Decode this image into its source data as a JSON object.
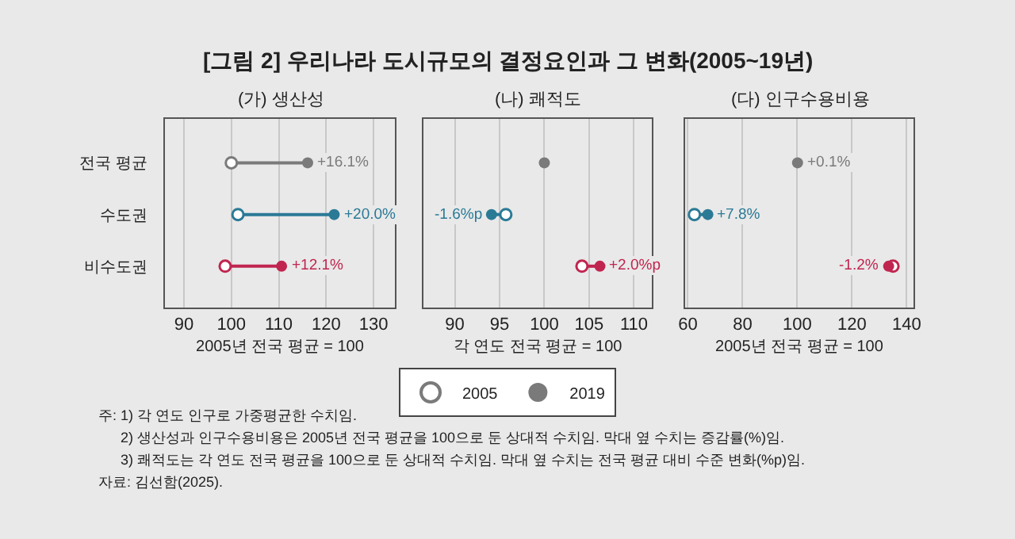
{
  "chart_data": [
    {
      "type": "scatter",
      "orientation": "horizontal",
      "title": "(가) 생산성",
      "xlabel": "2005년 전국 평균 = 100",
      "categories": [
        "전국 평균",
        "수도권",
        "비수도권"
      ],
      "xlim": [
        86,
        134.5
      ],
      "xticks": [
        90,
        100,
        110,
        120,
        130
      ],
      "grid": "x",
      "marker": "circle",
      "legend": "bottom",
      "annotations": [
        "[그림 2] 우리나라 도시규모의 결정요인과 그 변화(2005~19년)",
        "주: 1) 각 연도 인구로 가중평균한 수치임.",
        "2) 생산성과 인구수용비용은 2005년 전국 평균을 100으로 둔 상대적 수치임. 막대 옆 수치는 증감률(%)임.",
        "3) 쾌적도는 각 연도 전국 평균을 100으로 둔 상대적 수치임. 막대 옆 수치는 전국 평균 대비 수준 변화(%p)임.",
        "자료: 김선함(2025).",
        {
          "text": "+16.1%",
          "x": 116.1,
          "y": "전국 평균"
        },
        {
          "text": "+20.0%",
          "x": 121.7,
          "y": "수도권"
        },
        {
          "text": "+12.1%",
          "x": 110.6,
          "y": "비수도권"
        }
      ],
      "series": [
        {
          "name": "2005",
          "colors": [
            "#7a7a7a",
            "#2a7a96",
            "#c0254f"
          ],
          "values": [
            100,
            101.4,
            98.7
          ]
        },
        {
          "name": "2019",
          "colors": [
            "#7a7a7a",
            "#2a7a96",
            "#c0254f"
          ],
          "values": [
            116.1,
            121.7,
            110.6
          ]
        }
      ]
    },
    {
      "type": "scatter",
      "orientation": "horizontal",
      "title": "(나) 쾌적도",
      "xlabel": "각 연도 전국 평균 = 100",
      "categories": [
        "전국 평균",
        "수도권",
        "비수도권"
      ],
      "xlim": [
        86.5,
        112
      ],
      "xticks": [
        90,
        95,
        100,
        105,
        110
      ],
      "grid": "x",
      "marker": "circle",
      "tick_labels": "x",
      "annotations": [
        {
          "text": "-1.6%p",
          "x": 94.1,
          "y": "수도권"
        },
        {
          "text": "+2.0%p",
          "x": 106.2,
          "y": "비수도권"
        }
      ],
      "series": [
        {
          "name": "2005",
          "colors": [
            "#7a7a7a",
            "#2a7a96",
            "#c0254f"
          ],
          "values": [
            null,
            95.7,
            104.2
          ]
        },
        {
          "name": "2019",
          "colors": [
            "#7a7a7a",
            "#2a7a96",
            "#c0254f"
          ],
          "values": [
            100,
            94.1,
            106.2
          ]
        }
      ]
    },
    {
      "type": "scatter",
      "orientation": "horizontal",
      "title": "(다) 인구수용비용",
      "xlabel": "2005년 전국 평균 = 100",
      "categories": [
        "전국 평균",
        "수도권",
        "비수도권"
      ],
      "xlim": [
        59,
        142.5
      ],
      "xticks": [
        60,
        80,
        100,
        120,
        140
      ],
      "grid": "x",
      "marker": "circle",
      "tick_labels": "x",
      "annotations": [
        {
          "text": "+0.1%",
          "x": 100.1,
          "y": "전국 평균"
        },
        {
          "text": "+7.8%",
          "x": 67.3,
          "y": "수도권"
        },
        {
          "text": "-1.2%",
          "x": 133.4,
          "y": "비수도권"
        }
      ],
      "series": [
        {
          "name": "2005",
          "colors": [
            "#7a7a7a",
            "#2a7a96",
            "#c0254f"
          ],
          "values": [
            null,
            62.4,
            135
          ]
        },
        {
          "name": "2019",
          "colors": [
            "#7a7a7a",
            "#2a7a96",
            "#c0254f"
          ],
          "values": [
            100.1,
            67.3,
            133.4
          ]
        }
      ]
    }
  ]
}
